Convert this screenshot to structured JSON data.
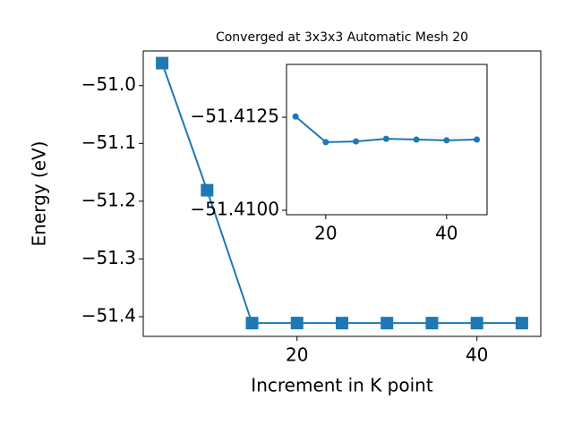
{
  "chart_data": [
    {
      "type": "line",
      "title": "Converged at 3x3x3 Automatic Mesh 20",
      "x_label": "Increment in K point",
      "y_label": "Energy (eV)",
      "x": [
        5,
        10,
        15,
        20,
        25,
        30,
        35,
        40,
        45
      ],
      "series": [
        {
          "color": "#1f77b4",
          "marker": "square",
          "values": [
            -50.961,
            -51.181,
            -51.411,
            -51.4109,
            -51.411,
            -51.411,
            -51.411,
            -51.411,
            -51.411
          ]
        }
      ],
      "xlim": [
        2.9,
        47.1
      ],
      "xticks": [
        20,
        40
      ],
      "ylim": [
        -51.434,
        -50.94
      ],
      "yticks": [
        {
          "value": -51.4,
          "label": "−51.4"
        },
        {
          "value": -51.3,
          "label": "−51.3"
        },
        {
          "value": -51.2,
          "label": "−51.2"
        },
        {
          "value": -51.1,
          "label": "−51.1"
        },
        {
          "value": -51.0,
          "label": "−51.0"
        }
      ]
    },
    {
      "type": "line",
      "x": [
        15,
        20,
        25,
        30,
        35,
        40,
        45
      ],
      "series": [
        {
          "color": "#1f77b4",
          "marker": "circle",
          "values": [
            -51.41252,
            -51.41183,
            -51.41185,
            -51.41192,
            -51.4119,
            -51.41188,
            -51.4119
          ]
        }
      ],
      "xlim": [
        13.5,
        46.7
      ],
      "xticks": [
        20,
        40
      ],
      "ylim": [
        -51.40988,
        -51.41392
      ],
      "yticks": [
        {
          "value": -51.41,
          "label": "−51.4100"
        },
        {
          "value": -51.4125,
          "label": "−51.4125"
        }
      ]
    }
  ]
}
